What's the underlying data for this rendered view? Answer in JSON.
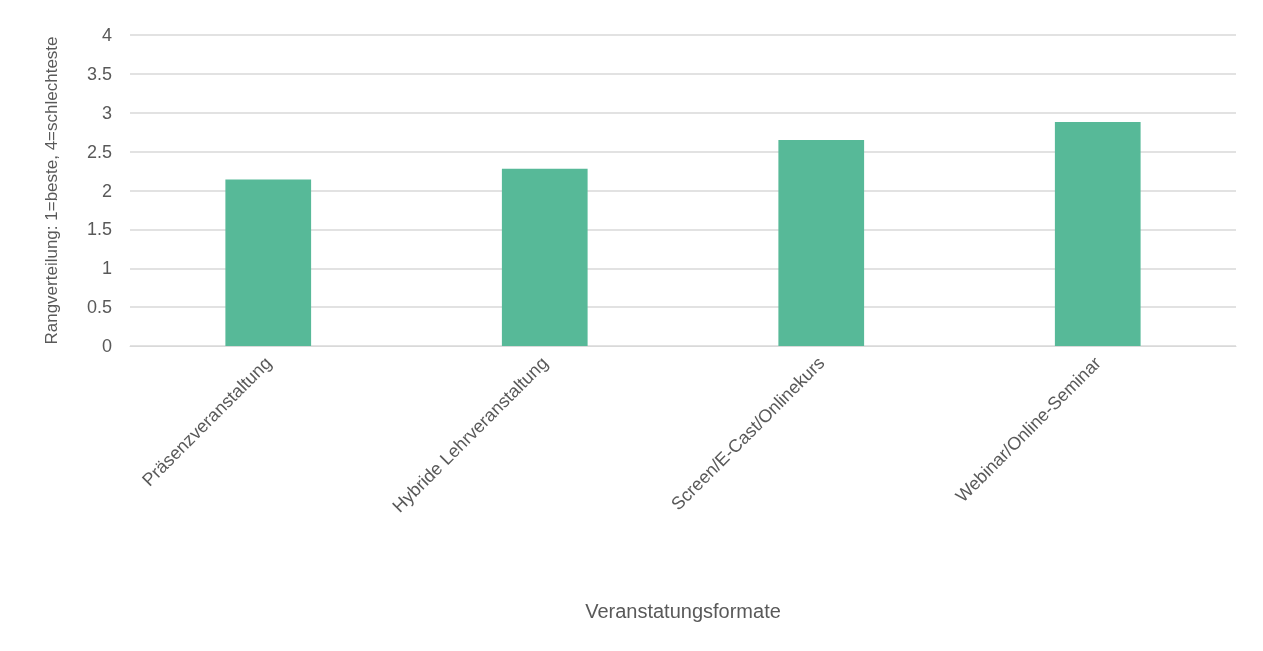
{
  "chart_data": {
    "type": "bar",
    "xlabel": "Veranstatungsformate",
    "ylabel": "Rangverteilung: 1=beste, 4=schlechteste",
    "categories": [
      "Präsenzveranstaltung",
      "Hybride Lehrveranstaltung",
      "Screen/E-Cast/Onlinekurs",
      "Webinar/Online-Seminar"
    ],
    "values": [
      2.14,
      2.28,
      2.65,
      2.88
    ],
    "color": "#57b998",
    "ylim": [
      0,
      4
    ],
    "yticks": [
      0,
      0.5,
      1,
      1.5,
      2,
      2.5,
      3,
      3.5,
      4
    ],
    "grid": "y"
  }
}
